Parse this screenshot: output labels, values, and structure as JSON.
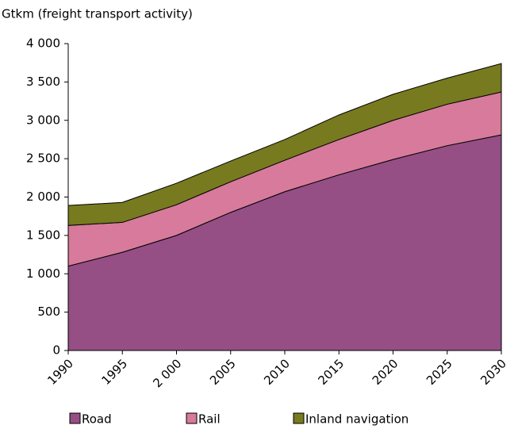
{
  "chart_data": {
    "type": "area",
    "stacked": true,
    "title": "Gtkm (freight transport activity)",
    "categories": [
      "1990",
      "1995",
      "2 000",
      "2005",
      "2010",
      "2015",
      "2020",
      "2025",
      "2030"
    ],
    "series": [
      {
        "name": "Road",
        "color": "#954f85",
        "values": [
          1100,
          1280,
          1500,
          1800,
          2070,
          2290,
          2490,
          2670,
          2810
        ]
      },
      {
        "name": "Rail",
        "color": "#d77a9b",
        "values": [
          530,
          390,
          400,
          400,
          410,
          460,
          510,
          540,
          560
        ]
      },
      {
        "name": "Inland navigation",
        "color": "#777a1f",
        "values": [
          260,
          260,
          280,
          270,
          270,
          320,
          340,
          340,
          370
        ]
      }
    ],
    "ylim": [
      0,
      4000
    ],
    "yticks": [
      0,
      500,
      {
        "value": 1000,
        "label": "1 000"
      },
      {
        "value": 1500,
        "label": "1 500"
      },
      {
        "value": 2000,
        "label": "2 000"
      },
      {
        "value": 2500,
        "label": "2 500"
      },
      {
        "value": 3000,
        "label": "3 000"
      },
      {
        "value": 3500,
        "label": "3 500"
      },
      {
        "value": 4000,
        "label": "4 000"
      }
    ],
    "grid": false,
    "legend": "bottom"
  }
}
